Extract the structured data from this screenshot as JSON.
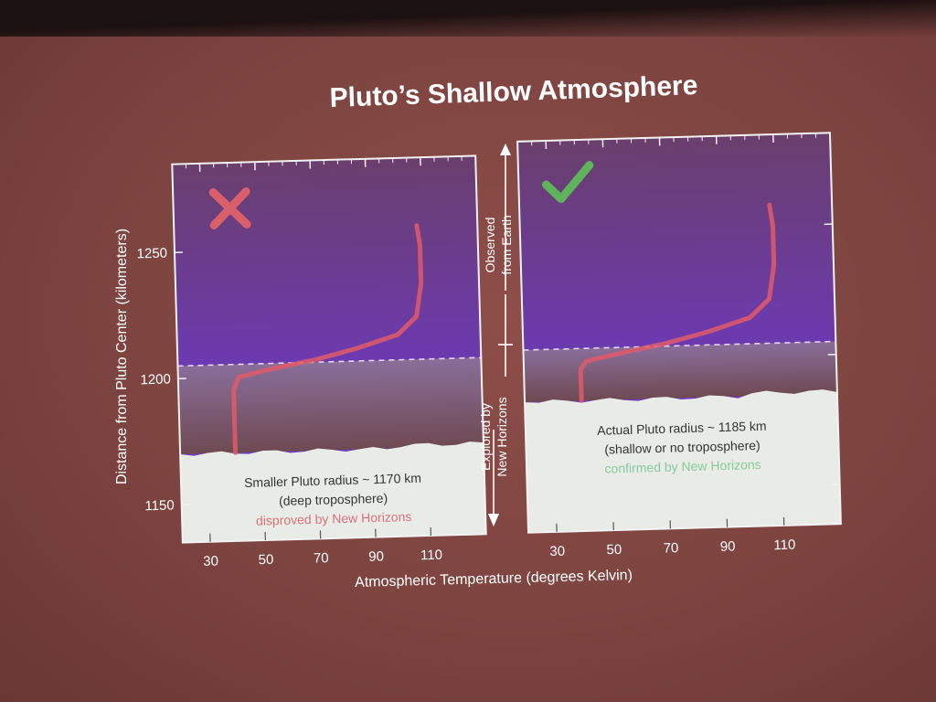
{
  "slide": {
    "title": "Pluto’s Shallow Atmosphere",
    "x_axis_label": "Atmospheric Temperature (degrees Kelvin)",
    "y_axis_label": "Distance from Pluto Center (kilometers)",
    "side_top": [
      "Observed",
      "from Earth"
    ],
    "side_bottom": [
      "Explored by",
      "New Horizons"
    ]
  },
  "chart_data": [
    {
      "type": "line",
      "verdict": "disproved",
      "verdict_color": "#d9606a",
      "xlim": [
        20,
        130
      ],
      "ylim": [
        1135,
        1285
      ],
      "x_ticks": [
        30,
        50,
        70,
        90,
        110
      ],
      "y_ticks": [
        1150,
        1200,
        1250
      ],
      "surface_km": 1170,
      "divide_km": 1205,
      "series": [
        {
          "color": "#e05a6a",
          "x": [
            40,
            40,
            42,
            55,
            70,
            85,
            100,
            107,
            109,
            109,
            108
          ],
          "y": [
            1170,
            1195,
            1200,
            1203,
            1206,
            1210,
            1215,
            1222,
            1235,
            1250,
            1258
          ]
        }
      ],
      "annotation": [
        "Smaller Pluto radius ~ 1170 km",
        "(deep troposphere)",
        "disproved by New Horizons"
      ]
    },
    {
      "type": "line",
      "verdict": "confirmed",
      "verdict_color": "#5fb35a",
      "xlim": [
        20,
        130
      ],
      "ylim": [
        1135,
        1285
      ],
      "x_ticks": [
        30,
        50,
        70,
        90,
        110
      ],
      "y_ticks": [
        1150,
        1200,
        1250
      ],
      "surface_km": 1185,
      "divide_km": 1205,
      "series": [
        {
          "color": "#e05a6a",
          "x": [
            40,
            40,
            42,
            55,
            70,
            85,
            100,
            107,
            109,
            109,
            108
          ],
          "y": [
            1185,
            1197,
            1200,
            1203,
            1206,
            1210,
            1215,
            1222,
            1235,
            1250,
            1258
          ]
        }
      ],
      "annotation": [
        "Actual Pluto radius ~ 1185 km",
        "(shallow or no troposphere)",
        "confirmed by New Horizons"
      ]
    }
  ]
}
